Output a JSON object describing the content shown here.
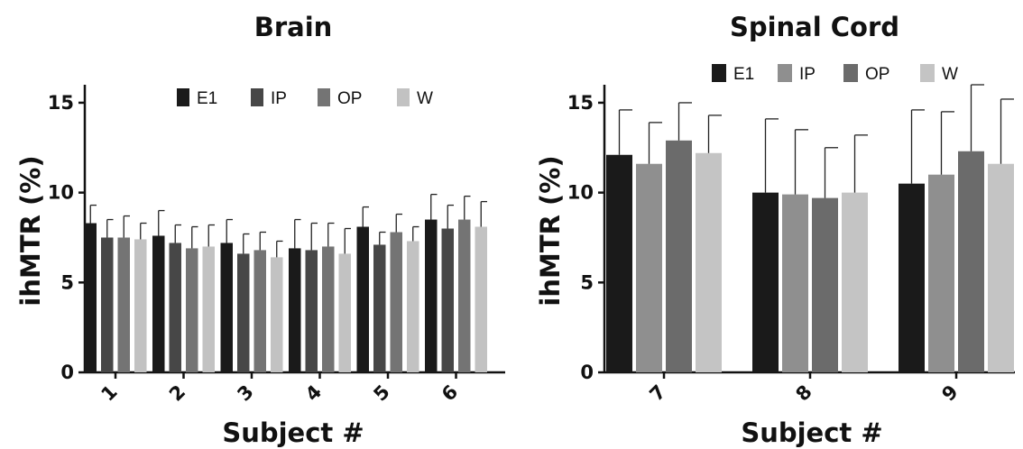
{
  "chart_data": [
    {
      "type": "bar",
      "title": "Brain",
      "xlabel": "Subject #",
      "ylabel": "ihMTR (%)",
      "ylim": [
        0,
        16
      ],
      "yticks": [
        0,
        5,
        10,
        15
      ],
      "categories": [
        "1",
        "2",
        "3",
        "4",
        "5",
        "6"
      ],
      "legend_position": "top-center",
      "series": [
        {
          "name": "E1",
          "color": "#1a1a1a",
          "values": [
            8.3,
            7.6,
            7.2,
            6.9,
            8.1,
            8.5
          ],
          "errors": [
            1.0,
            1.4,
            1.3,
            1.6,
            1.1,
            1.4
          ]
        },
        {
          "name": "IP",
          "color": "#474747",
          "values": [
            7.5,
            7.2,
            6.6,
            6.8,
            7.1,
            8.0
          ],
          "errors": [
            1.0,
            1.0,
            1.1,
            1.5,
            0.7,
            1.3
          ]
        },
        {
          "name": "OP",
          "color": "#747474",
          "values": [
            7.5,
            6.9,
            6.8,
            7.0,
            7.8,
            8.5
          ],
          "errors": [
            1.2,
            1.2,
            1.0,
            1.3,
            1.0,
            1.3
          ]
        },
        {
          "name": "W",
          "color": "#c2c2c2",
          "values": [
            7.4,
            7.0,
            6.4,
            6.6,
            7.3,
            8.1
          ],
          "errors": [
            0.9,
            1.2,
            0.9,
            1.4,
            0.8,
            1.4
          ]
        }
      ]
    },
    {
      "type": "bar",
      "title": "Spinal Cord",
      "xlabel": "Subject #",
      "ylabel": "ihMTR (%)",
      "ylim": [
        0,
        16
      ],
      "yticks": [
        0,
        5,
        10,
        15
      ],
      "categories": [
        "7",
        "8",
        "9"
      ],
      "legend_position": "top-center",
      "series": [
        {
          "name": "E1",
          "color": "#1a1a1a",
          "values": [
            12.1,
            10.0,
            10.5
          ],
          "errors": [
            2.5,
            4.1,
            4.1
          ]
        },
        {
          "name": "IP",
          "color": "#8f8f8f",
          "values": [
            11.6,
            9.9,
            11.0
          ],
          "errors": [
            2.3,
            3.6,
            3.5
          ]
        },
        {
          "name": "OP",
          "color": "#6b6b6b",
          "values": [
            12.9,
            9.7,
            12.3
          ],
          "errors": [
            2.1,
            2.8,
            3.7
          ]
        },
        {
          "name": "W",
          "color": "#c4c4c4",
          "values": [
            12.2,
            10.0,
            11.6
          ],
          "errors": [
            2.1,
            3.2,
            3.6
          ]
        }
      ]
    }
  ]
}
